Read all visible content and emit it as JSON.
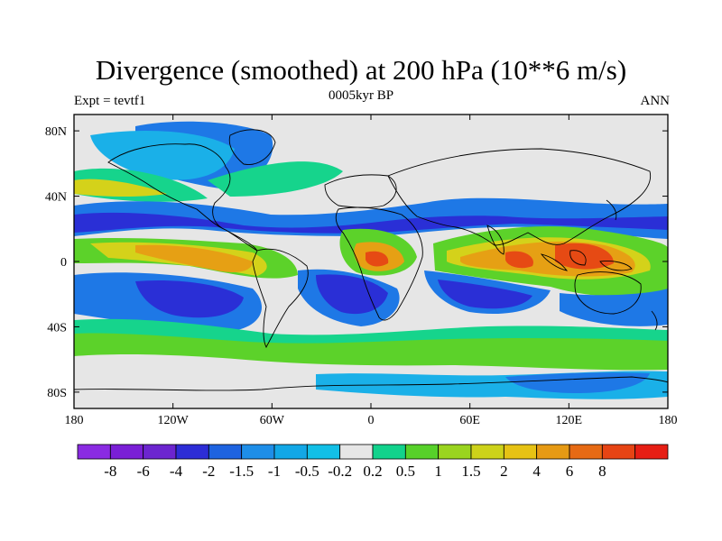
{
  "title": "Divergence (smoothed) at 200 hPa (10**6 m/s)",
  "subtitle_left": "Expt = tevtf1",
  "subtitle_center": "0005kyr BP",
  "subtitle_right": "ANN",
  "x_ticks": [
    "180",
    "120W",
    "60W",
    "0",
    "60E",
    "120E",
    "180"
  ],
  "y_ticks": [
    "80N",
    "40N",
    "0",
    "40S",
    "80S"
  ],
  "colorbar": {
    "colors": [
      "#8a2be2",
      "#7a1fd6",
      "#6c25cf",
      "#2d2dd6",
      "#1e63e0",
      "#1e8ee8",
      "#12a7e6",
      "#12bfe6",
      "#e6e6e6",
      "#12d28c",
      "#57d12a",
      "#9ad41f",
      "#cdd21a",
      "#e6c214",
      "#e69a14",
      "#e66a14",
      "#e64414",
      "#e61e14"
    ],
    "labels": [
      "-8",
      "-6",
      "-4",
      "-2",
      "-1.5",
      "-1",
      "-0.5",
      "-0.2",
      "0.2",
      "0.5",
      "1",
      "1.5",
      "2",
      "4",
      "6",
      "8"
    ]
  },
  "palette": {
    "dark_blue": "#2a2fd6",
    "mid_blue": "#1e78e6",
    "light_blue": "#1ab0e8",
    "neutral": "#e6e6e6",
    "teal": "#16d48c",
    "green": "#5cd22a",
    "yellow": "#d4d21a",
    "orange": "#e6a014",
    "red": "#e64a14"
  }
}
